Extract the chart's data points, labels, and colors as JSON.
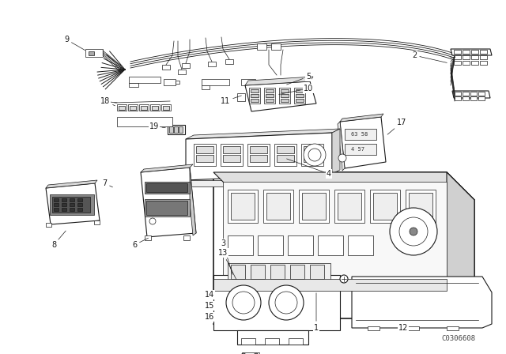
{
  "bg_color": "#ffffff",
  "line_color": "#1a1a1a",
  "fig_width": 6.4,
  "fig_height": 4.48,
  "dpi": 100,
  "watermark": "C0306608",
  "watermark_fontsize": 6.5,
  "watermark_color": "#444444"
}
